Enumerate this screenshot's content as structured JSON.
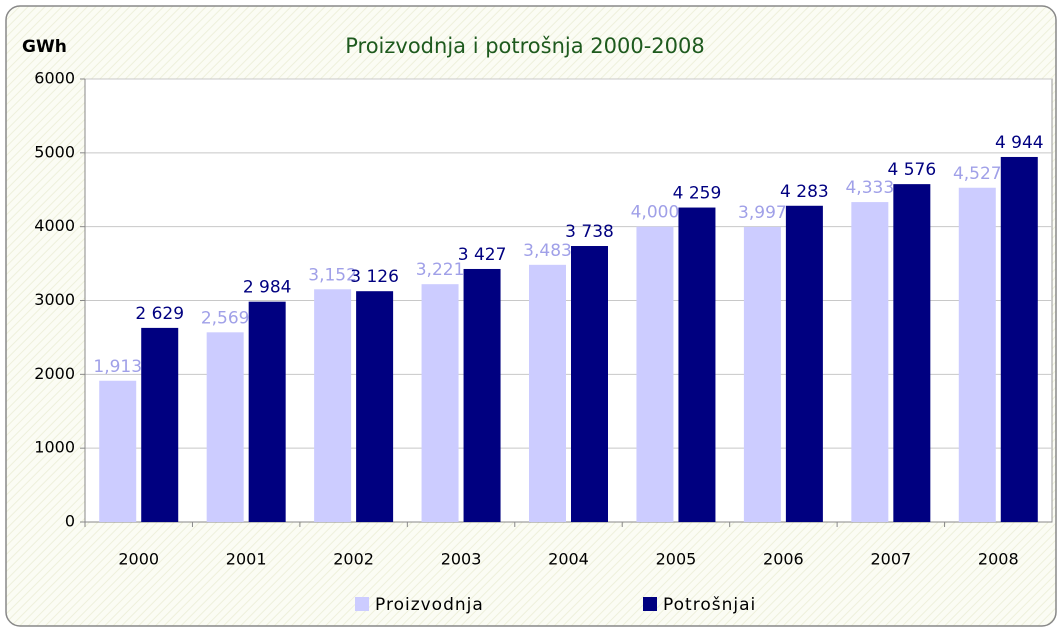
{
  "chart_data": {
    "type": "bar",
    "title": "Proizvodnja i potrošnja 2000-2008",
    "y_label": "GWh",
    "categories": [
      "2000",
      "2001",
      "2002",
      "2003",
      "2004",
      "2005",
      "2006",
      "2007",
      "2008"
    ],
    "series": [
      {
        "name": "Proizvodnja",
        "color": "#ccccff",
        "label_color": "#a0a0e8",
        "values": [
          1913,
          2569,
          3152,
          3221,
          3483,
          4000,
          3997,
          4333,
          4527
        ],
        "value_labels": [
          "1,913",
          "2,569",
          "3,152",
          "3,221",
          "3,483",
          "4,000",
          "3,997",
          "4,333",
          "4,527"
        ]
      },
      {
        "name": "Potrošnjai",
        "color": "#000080",
        "label_color": "#000080",
        "values": [
          2629,
          2984,
          3126,
          3427,
          3738,
          4259,
          4283,
          4576,
          4944
        ],
        "value_labels": [
          "2 629",
          "2 984",
          "3 126",
          "3 427",
          "3 738",
          "4 259",
          "4 283",
          "4 576",
          "4 944"
        ]
      }
    ],
    "ylim": [
      0,
      6000
    ],
    "yticks": [
      0,
      1000,
      2000,
      3000,
      4000,
      5000,
      6000
    ],
    "grid": true,
    "legend": "bottom"
  }
}
